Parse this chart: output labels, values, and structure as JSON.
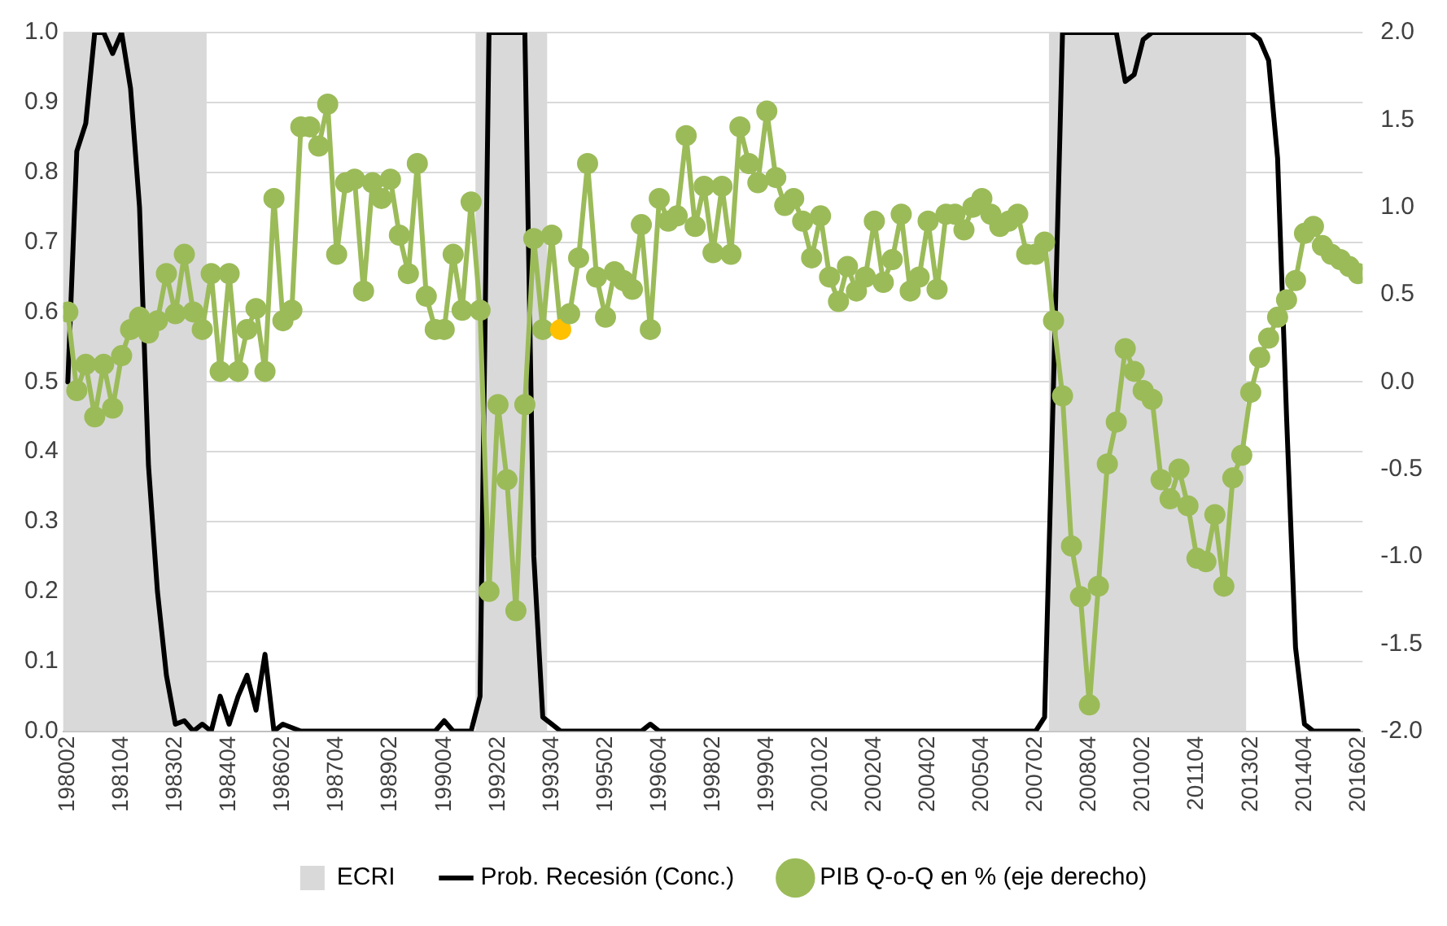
{
  "chart_data": {
    "type": "line",
    "x": [
      "1980-04",
      "1980-07",
      "1980-10",
      "1981-01",
      "1981-04",
      "1981-07",
      "1981-10",
      "1982-01",
      "1982-04",
      "1982-07",
      "1982-10",
      "1983-01",
      "1983-04",
      "1983-07",
      "1983-10",
      "1984-01",
      "1984-04",
      "1984-07",
      "1984-10",
      "1985-01",
      "1985-04",
      "1985-07",
      "1985-10",
      "1986-01",
      "1986-04",
      "1986-07",
      "1986-10",
      "1987-01",
      "1987-04",
      "1987-07",
      "1987-10",
      "1988-01",
      "1988-04",
      "1988-07",
      "1988-10",
      "1989-01",
      "1989-04",
      "1989-07",
      "1989-10",
      "1990-01",
      "1990-04",
      "1990-07",
      "1990-10",
      "1991-01",
      "1991-04",
      "1991-07",
      "1991-10",
      "1992-01",
      "1992-04",
      "1992-07",
      "1992-10",
      "1993-01",
      "1993-04",
      "1993-07",
      "1993-10",
      "1994-01",
      "1994-04",
      "1994-07",
      "1994-10",
      "1995-01",
      "1995-04",
      "1995-07",
      "1995-10",
      "1996-01",
      "1996-04",
      "1996-07",
      "1996-10",
      "1997-01",
      "1997-04",
      "1997-07",
      "1997-10",
      "1998-01",
      "1998-04",
      "1998-07",
      "1998-10",
      "1999-01",
      "1999-04",
      "1999-07",
      "1999-10",
      "2000-01",
      "2000-04",
      "2000-07",
      "2000-10",
      "2001-01",
      "2001-04",
      "2001-07",
      "2001-10",
      "2002-01",
      "2002-04",
      "2002-07",
      "2002-10",
      "2003-01",
      "2003-04",
      "2003-07",
      "2003-10",
      "2004-01",
      "2004-04",
      "2004-07",
      "2004-10",
      "2005-01",
      "2005-04",
      "2005-07",
      "2005-10",
      "2006-01",
      "2006-04",
      "2006-07",
      "2006-10",
      "2007-01",
      "2007-04",
      "2007-07",
      "2007-10",
      "2008-01",
      "2008-04",
      "2008-07",
      "2008-10",
      "2009-01",
      "2009-04",
      "2009-07",
      "2009-10",
      "2010-01",
      "2010-04",
      "2010-07",
      "2010-10",
      "2011-01",
      "2011-04",
      "2011-07",
      "2011-10",
      "2012-01",
      "2012-04",
      "2012-07",
      "2012-10",
      "2013-01",
      "2013-04",
      "2013-07",
      "2013-10",
      "2014-01",
      "2014-04",
      "2014-07",
      "2014-10",
      "2015-01",
      "2015-04",
      "2015-07",
      "2015-10",
      "2016-01",
      "2016-04"
    ],
    "xlim": [
      "1980-02-15",
      "2016-05-15"
    ],
    "xticks": [
      {
        "value": "1980-04",
        "label": "198002"
      },
      {
        "value": "1981-10",
        "label": "198104"
      },
      {
        "value": "1983-04",
        "label": "198302"
      },
      {
        "value": "1984-10",
        "label": "198404"
      },
      {
        "value": "1986-04",
        "label": "198602"
      },
      {
        "value": "1987-10",
        "label": "198704"
      },
      {
        "value": "1989-04",
        "label": "198902"
      },
      {
        "value": "1990-10",
        "label": "199004"
      },
      {
        "value": "1992-04",
        "label": "199202"
      },
      {
        "value": "1993-10",
        "label": "199304"
      },
      {
        "value": "1995-04",
        "label": "199502"
      },
      {
        "value": "1996-10",
        "label": "199604"
      },
      {
        "value": "1998-04",
        "label": "199802"
      },
      {
        "value": "1999-10",
        "label": "199904"
      },
      {
        "value": "2001-04",
        "label": "200102"
      },
      {
        "value": "2002-10",
        "label": "200204"
      },
      {
        "value": "2004-04",
        "label": "200402"
      },
      {
        "value": "2005-10",
        "label": "200504"
      },
      {
        "value": "2007-04",
        "label": "200702"
      },
      {
        "value": "2008-10",
        "label": "200804"
      },
      {
        "value": "2010-04",
        "label": "201002"
      },
      {
        "value": "2011-10",
        "label": "201104"
      },
      {
        "value": "2013-04",
        "label": "201302"
      },
      {
        "value": "2014-10",
        "label": "201404"
      },
      {
        "value": "2016-04",
        "label": "201602"
      }
    ],
    "bands": [
      {
        "axis": "x",
        "from": "1980-02-15",
        "to": "1984-02-15",
        "label": "ECRI",
        "color": "#d9d9d9"
      },
      {
        "axis": "x",
        "from": "1991-08-15",
        "to": "1993-08-15",
        "color": "#d9d9d9"
      },
      {
        "axis": "x",
        "from": "2007-08-15",
        "to": "2013-02-15",
        "color": "#d9d9d9"
      }
    ],
    "series": [
      {
        "name": "Prob. Recesión (Conc.)",
        "color": "#000000",
        "marker": "none",
        "values": [
          0.5,
          0.83,
          0.87,
          1,
          1,
          0.97,
          1,
          0.92,
          0.75,
          0.38,
          0.2,
          0.08,
          0.01,
          0.015,
          0,
          0.01,
          0,
          0.05,
          0.01,
          0.05,
          0.08,
          0.03,
          0.11,
          0,
          0.01,
          0.005,
          0,
          0,
          0,
          0,
          0,
          0,
          0,
          0,
          0,
          0,
          0,
          0,
          0,
          0,
          0,
          0,
          0.015,
          0,
          0,
          0,
          0.05,
          1,
          1,
          1,
          1,
          1,
          0.25,
          0.02,
          0.01,
          0,
          0,
          0,
          0,
          0,
          0,
          0,
          0,
          0,
          0,
          0.01,
          0,
          0,
          0,
          0,
          0,
          0,
          0,
          0,
          0,
          0,
          0,
          0,
          0,
          0,
          0,
          0,
          0,
          0,
          0,
          0,
          0,
          0,
          0,
          0,
          0,
          0,
          0,
          0,
          0,
          0,
          0,
          0,
          0,
          0,
          0,
          0,
          0,
          0,
          0,
          0,
          0,
          0,
          0,
          0.02,
          0.5,
          1,
          1,
          1,
          1,
          1,
          1,
          1,
          0.93,
          0.94,
          0.99,
          1,
          1,
          1,
          1,
          1,
          1,
          1,
          1,
          1,
          1,
          1,
          1,
          0.99,
          0.96,
          0.82,
          0.45,
          0.12,
          0.01,
          0,
          0,
          0,
          0,
          0,
          0
        ]
      },
      {
        "name": "PIB Q-o-Q en % (eje derecho)",
        "axis": "y2",
        "color": "#9bbb59",
        "marker": "circle",
        "colors": [
          "#9bbb59",
          "#9bbb59",
          "#9bbb59",
          "#9bbb59",
          "#9bbb59",
          "#9bbb59",
          "#9bbb59",
          "#9bbb59",
          "#9bbb59",
          "#9bbb59",
          "#9bbb59",
          "#9bbb59",
          "#9bbb59",
          "#9bbb59",
          "#9bbb59",
          "#9bbb59",
          "#9bbb59",
          "#9bbb59",
          "#9bbb59",
          "#9bbb59",
          "#9bbb59",
          "#9bbb59",
          "#9bbb59",
          "#9bbb59",
          "#9bbb59",
          "#9bbb59",
          "#9bbb59",
          "#9bbb59",
          "#9bbb59",
          "#9bbb59",
          "#9bbb59",
          "#9bbb59",
          "#9bbb59",
          "#9bbb59",
          "#9bbb59",
          "#9bbb59",
          "#9bbb59",
          "#9bbb59",
          "#9bbb59",
          "#9bbb59",
          "#9bbb59",
          "#9bbb59",
          "#9bbb59",
          "#9bbb59",
          "#9bbb59",
          "#9bbb59",
          "#9bbb59",
          "#9bbb59",
          "#9bbb59",
          "#9bbb59",
          "#9bbb59",
          "#9bbb59",
          "#9bbb59",
          "#9bbb59",
          "#9bbb59",
          "#ffc000",
          "#9bbb59",
          "#9bbb59",
          "#9bbb59",
          "#9bbb59",
          "#9bbb59",
          "#9bbb59",
          "#9bbb59",
          "#9bbb59",
          "#9bbb59",
          "#9bbb59",
          "#9bbb59",
          "#9bbb59",
          "#9bbb59",
          "#9bbb59",
          "#9bbb59",
          "#9bbb59",
          "#9bbb59",
          "#9bbb59",
          "#9bbb59",
          "#9bbb59",
          "#9bbb59",
          "#9bbb59",
          "#9bbb59",
          "#9bbb59",
          "#9bbb59",
          "#9bbb59",
          "#9bbb59",
          "#9bbb59",
          "#9bbb59",
          "#9bbb59",
          "#9bbb59",
          "#9bbb59",
          "#9bbb59",
          "#9bbb59",
          "#9bbb59",
          "#9bbb59",
          "#9bbb59",
          "#9bbb59",
          "#9bbb59",
          "#9bbb59",
          "#9bbb59",
          "#9bbb59",
          "#9bbb59",
          "#9bbb59",
          "#9bbb59",
          "#9bbb59",
          "#9bbb59",
          "#9bbb59",
          "#9bbb59",
          "#9bbb59",
          "#9bbb59",
          "#9bbb59",
          "#9bbb59",
          "#9bbb59",
          "#9bbb59",
          "#9bbb59",
          "#9bbb59",
          "#9bbb59",
          "#9bbb59",
          "#9bbb59",
          "#9bbb59",
          "#9bbb59",
          "#9bbb59",
          "#9bbb59",
          "#9bbb59",
          "#9bbb59",
          "#9bbb59",
          "#9bbb59",
          "#9bbb59",
          "#9bbb59",
          "#9bbb59",
          "#9bbb59",
          "#9bbb59",
          "#9bbb59",
          "#9bbb59",
          "#9bbb59",
          "#9bbb59",
          "#9bbb59",
          "#9bbb59",
          "#9bbb59",
          "#9bbb59",
          "#9bbb59",
          "#9bbb59",
          "#9bbb59",
          "#9bbb59",
          "#9bbb59",
          "#9bbb59",
          "#9bbb59",
          "#9bbb59"
        ],
        "values": [
          0.4,
          -0.05,
          0.1,
          -0.2,
          0.1,
          -0.15,
          0.15,
          0.3,
          0.37,
          0.28,
          0.35,
          0.62,
          0.39,
          0.73,
          0.4,
          0.3,
          0.62,
          0.06,
          0.62,
          0.06,
          0.3,
          0.42,
          0.06,
          1.05,
          0.35,
          0.41,
          1.46,
          1.46,
          1.35,
          1.59,
          0.73,
          1.14,
          1.16,
          0.52,
          1.14,
          1.05,
          1.16,
          0.84,
          0.62,
          1.25,
          0.49,
          0.3,
          0.3,
          0.73,
          0.41,
          1.03,
          0.41,
          -1.2,
          -0.13,
          -0.56,
          -1.31,
          -0.13,
          0.82,
          0.3,
          0.84,
          0.3,
          0.39,
          0.71,
          1.25,
          0.6,
          0.37,
          0.63,
          0.58,
          0.53,
          0.9,
          0.3,
          1.05,
          0.92,
          0.95,
          1.41,
          0.89,
          1.12,
          0.74,
          1.12,
          0.73,
          1.46,
          1.25,
          1.14,
          1.55,
          1.17,
          1.01,
          1.05,
          0.92,
          0.71,
          0.95,
          0.6,
          0.46,
          0.66,
          0.52,
          0.6,
          0.92,
          0.57,
          0.7,
          0.96,
          0.52,
          0.6,
          0.92,
          0.53,
          0.96,
          0.96,
          0.87,
          1.0,
          1.05,
          0.96,
          0.89,
          0.92,
          0.96,
          0.73,
          0.73,
          0.8,
          0.35,
          -0.08,
          -0.94,
          -1.23,
          -1.85,
          -1.17,
          -0.47,
          -0.23,
          0.19,
          0.06,
          -0.05,
          -0.1,
          -0.56,
          -0.67,
          -0.5,
          -0.71,
          -1.01,
          -1.03,
          -0.76,
          -1.17,
          -0.55,
          -0.42,
          -0.06,
          0.14,
          0.25,
          0.37,
          0.47,
          0.58,
          0.85,
          0.89,
          0.78,
          0.73,
          0.7,
          0.66,
          0.62
        ]
      }
    ],
    "ylim": [
      0,
      1
    ],
    "yticks": [
      {
        "value": 0,
        "label": "0.0"
      },
      {
        "value": 0.1,
        "label": "0.1"
      },
      {
        "value": 0.2,
        "label": "0.2"
      },
      {
        "value": 0.3,
        "label": "0.3"
      },
      {
        "value": 0.4,
        "label": "0.4"
      },
      {
        "value": 0.5,
        "label": "0.5"
      },
      {
        "value": 0.6,
        "label": "0.6"
      },
      {
        "value": 0.7,
        "label": "0.7"
      },
      {
        "value": 0.8,
        "label": "0.8"
      },
      {
        "value": 0.9,
        "label": "0.9"
      },
      {
        "value": 1,
        "label": "1.0"
      }
    ],
    "y2lim": [
      -2,
      2
    ],
    "y2ticks": [
      {
        "value": -2,
        "label": "-2.0"
      },
      {
        "value": -1.5,
        "label": "-1.5"
      },
      {
        "value": -1,
        "label": "-1.0"
      },
      {
        "value": -0.5,
        "label": "-0.5"
      },
      {
        "value": 0,
        "label": "0.0"
      },
      {
        "value": 0.5,
        "label": "0.5"
      },
      {
        "value": 1,
        "label": "1.0"
      },
      {
        "value": 1.5,
        "label": "1.5"
      },
      {
        "value": 2,
        "label": "2.0"
      }
    ],
    "grid": "y",
    "legend": "bottom"
  }
}
